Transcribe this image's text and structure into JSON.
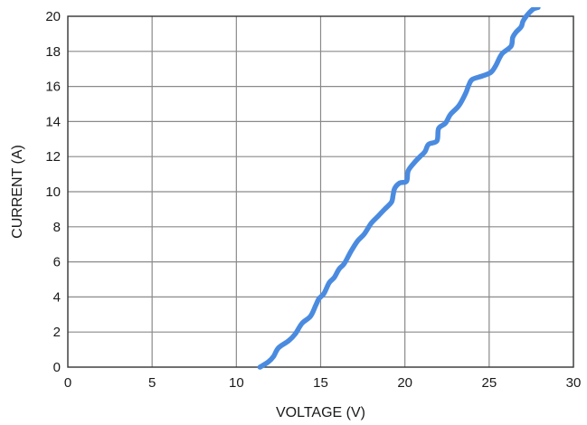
{
  "chart_data": {
    "type": "line",
    "title": "",
    "xlabel": "VOLTAGE (V)",
    "ylabel": "CURRENT (A)",
    "xlim": [
      0,
      30
    ],
    "ylim": [
      0,
      20
    ],
    "x_ticks": [
      0,
      5,
      10,
      15,
      20,
      25,
      30
    ],
    "y_ticks": [
      0,
      2,
      4,
      6,
      8,
      10,
      12,
      14,
      16,
      18,
      20
    ],
    "x_tick_labels": [
      "0",
      "5",
      "10",
      "15",
      "20",
      "25",
      "30"
    ],
    "y_tick_labels": [
      "0",
      "2",
      "4",
      "6",
      "8",
      "10",
      "12",
      "14",
      "16",
      "18",
      "20"
    ],
    "grid": true,
    "legend": "none",
    "series": [
      {
        "color": "#4a8be0",
        "points": [
          [
            11.4,
            0.0
          ],
          [
            11.9,
            0.3
          ],
          [
            12.2,
            0.6
          ],
          [
            12.5,
            1.1
          ],
          [
            13.1,
            1.5
          ],
          [
            13.5,
            1.9
          ],
          [
            13.9,
            2.5
          ],
          [
            14.4,
            2.9
          ],
          [
            14.7,
            3.5
          ],
          [
            14.9,
            3.9
          ],
          [
            15.2,
            4.2
          ],
          [
            15.5,
            4.8
          ],
          [
            15.8,
            5.1
          ],
          [
            16.1,
            5.6
          ],
          [
            16.4,
            5.9
          ],
          [
            16.8,
            6.6
          ],
          [
            17.2,
            7.2
          ],
          [
            17.6,
            7.6
          ],
          [
            18.0,
            8.2
          ],
          [
            18.4,
            8.6
          ],
          [
            18.8,
            9.0
          ],
          [
            19.2,
            9.4
          ],
          [
            19.3,
            9.8
          ],
          [
            19.4,
            10.2
          ],
          [
            19.7,
            10.5
          ],
          [
            20.1,
            10.6
          ],
          [
            20.2,
            11.2
          ],
          [
            20.6,
            11.7
          ],
          [
            20.9,
            12.0
          ],
          [
            21.2,
            12.3
          ],
          [
            21.4,
            12.7
          ],
          [
            21.9,
            12.9
          ],
          [
            22.0,
            13.6
          ],
          [
            22.4,
            13.9
          ],
          [
            22.7,
            14.4
          ],
          [
            23.2,
            14.9
          ],
          [
            23.6,
            15.6
          ],
          [
            23.8,
            16.1
          ],
          [
            24.0,
            16.4
          ],
          [
            24.6,
            16.6
          ],
          [
            25.1,
            16.8
          ],
          [
            25.4,
            17.2
          ],
          [
            25.6,
            17.6
          ],
          [
            25.8,
            17.9
          ],
          [
            26.3,
            18.3
          ],
          [
            26.4,
            18.8
          ],
          [
            26.6,
            19.1
          ],
          [
            26.9,
            19.4
          ],
          [
            27.0,
            19.7
          ],
          [
            27.2,
            20.0
          ],
          [
            27.6,
            20.4
          ],
          [
            27.9,
            20.5
          ]
        ]
      }
    ]
  }
}
